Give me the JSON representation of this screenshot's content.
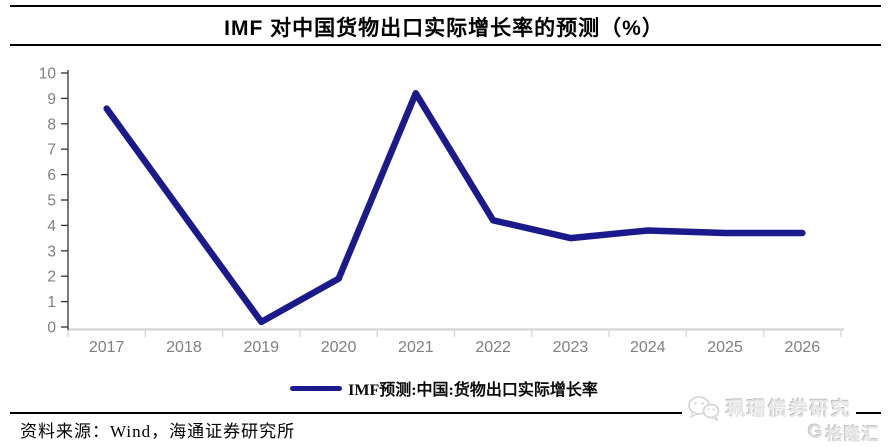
{
  "title": "IMF 对中国货物出口实际增长率的预测（%）",
  "chart_data": {
    "type": "line",
    "title": "IMF 对中国货物出口实际增长率的预测（%）",
    "categories": [
      "2017",
      "2018",
      "2019",
      "2020",
      "2021",
      "2022",
      "2023",
      "2024",
      "2025",
      "2026"
    ],
    "series": [
      {
        "name": "IMF预测:中国:货物出口实际增长率",
        "values": [
          8.6,
          4.4,
          0.2,
          1.9,
          9.2,
          4.2,
          3.5,
          3.8,
          3.7,
          3.7
        ],
        "color": "#1a1a8c"
      }
    ],
    "xlabel": "",
    "ylabel": "",
    "ylim": [
      0,
      10
    ],
    "y_ticks": [
      0,
      1,
      2,
      3,
      4,
      5,
      6,
      7,
      8,
      9,
      10
    ],
    "grid": false,
    "legend_position": "bottom"
  },
  "footer": {
    "source": "资料来源：Wind，海通证券研究所"
  },
  "watermark": {
    "brand": "珮珊债券研究",
    "logo_letter": "G",
    "logo_text": "格隆汇"
  },
  "colors": {
    "line": "#1a1a8c",
    "axis_label": "#7f7f7f",
    "x_axis_line": "#d9d9d9",
    "y_axis_line": "#333333",
    "title_text": "#000000"
  }
}
